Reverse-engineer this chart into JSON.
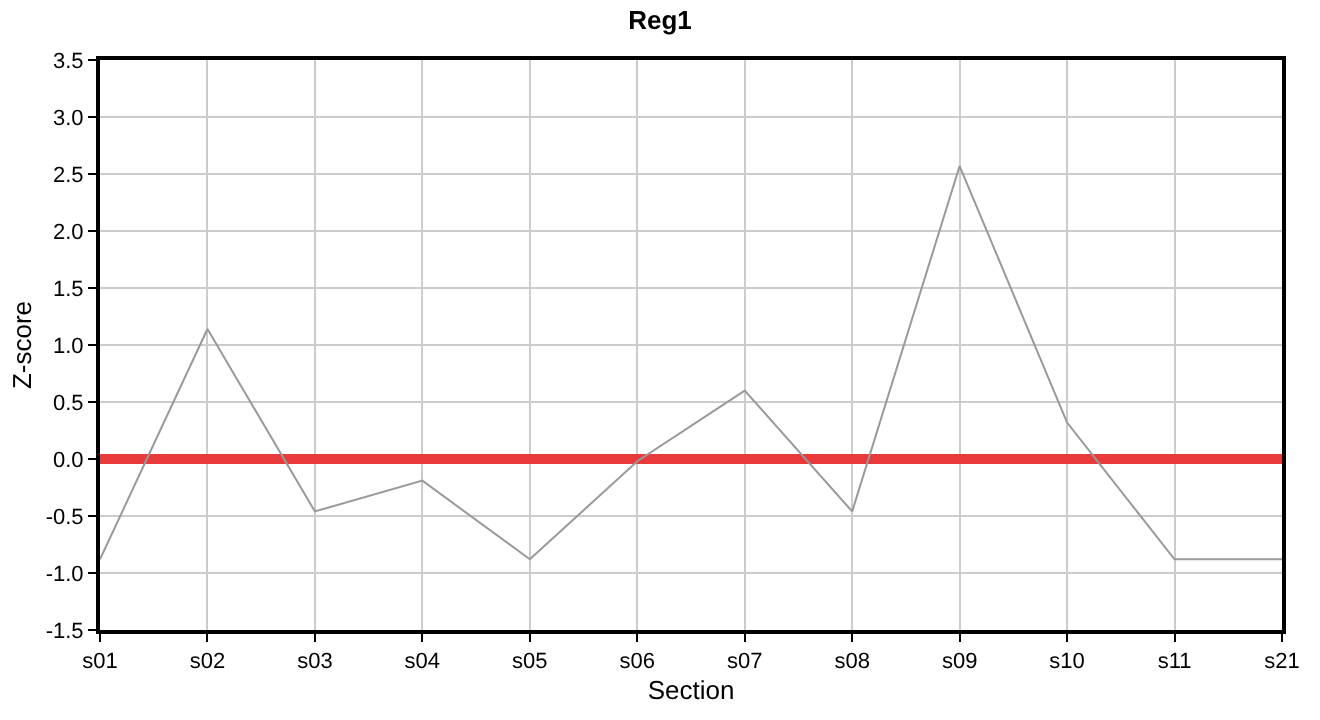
{
  "chart_data": {
    "type": "line",
    "title": "Reg1",
    "xlabel": "Section",
    "ylabel": "Z-score",
    "categories": [
      "s01",
      "s02",
      "s03",
      "s04",
      "s05",
      "s06",
      "s07",
      "s08",
      "s09",
      "s10",
      "s11",
      "s21"
    ],
    "series": [
      {
        "color": "#999999",
        "values": [
          -0.88,
          1.14,
          -0.46,
          -0.19,
          -0.88,
          -0.02,
          0.6,
          -0.46,
          2.57,
          0.32,
          -0.88,
          -0.88
        ]
      }
    ],
    "ylim": [
      -1.5,
      3.5
    ],
    "yticks": [
      {
        "value": -1.5,
        "label": "-1.5"
      },
      {
        "value": -1.0,
        "label": "-1.0"
      },
      {
        "value": -0.5,
        "label": "-0.5"
      },
      {
        "value": 0,
        "label": "0.0"
      },
      {
        "value": 0.5,
        "label": "0.5"
      },
      {
        "value": 1.0,
        "label": "1.0"
      },
      {
        "value": 1.5,
        "label": "1.5"
      },
      {
        "value": 2.0,
        "label": "2.0"
      },
      {
        "value": 2.5,
        "label": "2.5"
      },
      {
        "value": 3.0,
        "label": "3.0"
      },
      {
        "value": 3.5,
        "label": "3.5"
      }
    ],
    "ref_lines": [
      {
        "axis": "y",
        "value": 0,
        "color": "#e83a3a",
        "line_style": "solid"
      }
    ],
    "grid": true,
    "marker": "none",
    "line_style": "solid"
  }
}
